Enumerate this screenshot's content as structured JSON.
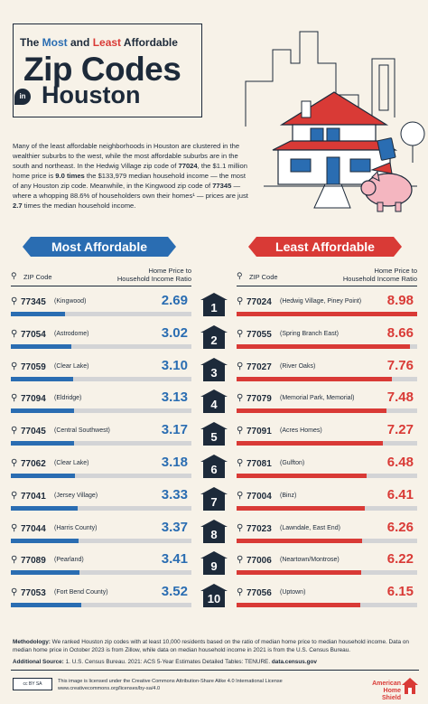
{
  "header": {
    "title_prefix": "The ",
    "title_most": "Most",
    "title_and": " and ",
    "title_least": "Least",
    "title_suffix": " Affordable",
    "title_main": "Zip Codes",
    "title_in": "in",
    "title_city": "Houston"
  },
  "intro": {
    "p1": "Many of the least affordable neighborhoods in Houston are clustered in the wealthier suburbs to the west, while the most affordable suburbs are in the south and northeast. In the Hedwig Village zip code of ",
    "b1": "77024",
    "p2": ", the $1.1 million home price is ",
    "b2": "9.0 times",
    "p3": " the $133,979 median household income — the most of any Houston zip code. Meanwhile, in the Kingwood zip code of ",
    "b3": "77345",
    "p4": " — where a whopping 88.6% of householders own their homes¹ — prices are just ",
    "b4": "2.7",
    "p5": " times the median household income."
  },
  "columns": {
    "most_title": "Most Affordable",
    "least_title": "Least Affordable",
    "zip_label": "ZIP Code",
    "ratio_label_1": "Home Price to",
    "ratio_label_2": "Household Income Ratio"
  },
  "chart_data": [
    {
      "type": "bar",
      "title": "Most Affordable",
      "ylabel": "Home Price to Household Income Ratio",
      "categories": [
        "77345",
        "77054",
        "77059",
        "77094",
        "77045",
        "77062",
        "77041",
        "77044",
        "77089",
        "77053"
      ],
      "areas": [
        "(Kingwood)",
        "(Astrodome)",
        "(Clear Lake)",
        "(Eldridge)",
        "(Central Southwest)",
        "(Clear Lake)",
        "(Jersey Village)",
        "(Harris County)",
        "(Pearland)",
        "(Fort Bend County)"
      ],
      "values": [
        2.69,
        3.02,
        3.1,
        3.13,
        3.17,
        3.18,
        3.33,
        3.37,
        3.41,
        3.52
      ],
      "labels": [
        "2.69",
        "3.02",
        "3.10",
        "3.13",
        "3.17",
        "3.18",
        "3.33",
        "3.37",
        "3.41",
        "3.52"
      ],
      "ylim": [
        0,
        9
      ],
      "color": "#2a6db2"
    },
    {
      "type": "bar",
      "title": "Least Affordable",
      "ylabel": "Home Price to Household Income Ratio",
      "categories": [
        "77024",
        "77055",
        "77027",
        "77079",
        "77091",
        "77081",
        "77004",
        "77023",
        "77006",
        "77056"
      ],
      "areas": [
        "(Hedwig Village, Piney Point)",
        "(Spring Branch East)",
        "(River Oaks)",
        "(Memorial Park, Memorial)",
        "(Acres Homes)",
        "(Gulfton)",
        "(Binz)",
        "(Lawndale, East End)",
        "(Neartown/Montrose)",
        "(Uptown)"
      ],
      "values": [
        8.98,
        8.66,
        7.76,
        7.48,
        7.27,
        6.48,
        6.41,
        6.26,
        6.22,
        6.15
      ],
      "labels": [
        "8.98",
        "8.66",
        "7.76",
        "7.48",
        "7.27",
        "6.48",
        "6.41",
        "6.26",
        "6.22",
        "6.15"
      ],
      "ylim": [
        0,
        9
      ],
      "color": "#d93a36"
    }
  ],
  "ranks": [
    "1",
    "2",
    "3",
    "4",
    "5",
    "6",
    "7",
    "8",
    "9",
    "10"
  ],
  "footer": {
    "method_label": "Methodology:",
    "method_text": " We ranked Houston zip codes with at least 10,000 residents based on the ratio of median home price to median household income. Data on median home price in October 2023 is from Zillow, while data on median household income in 2021 is from the U.S. Census Bureau.",
    "source_label": "Additional Source:",
    "source_text": " 1. U.S. Census Bureau. 2021: ACS 5-Year Estimates Detailed Tables: TENURE. ",
    "source_link": "data.census.gov",
    "cc_badge": "cc  BY  SA",
    "license_1": "This image is licensed under the Creative Commons Attribution-Share Alike 4.0 International License",
    "license_2": "www.creativecommons.org/licenses/by-sa/4.0",
    "brand_1": "American",
    "brand_2": "Home Shield"
  },
  "colors": {
    "blue": "#2a6db2",
    "red": "#d93a36",
    "navy": "#1d2a3a",
    "bg": "#f7f2e8"
  }
}
